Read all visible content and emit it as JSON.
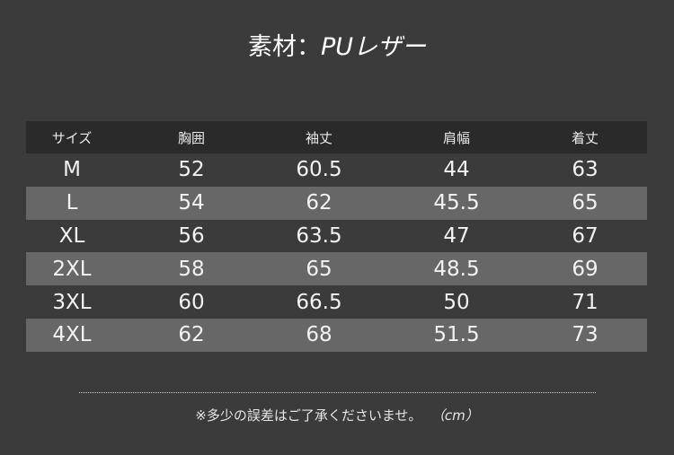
{
  "title": {
    "prefix": "素材：",
    "material": "PUレザー"
  },
  "table": {
    "headers": [
      "サイズ",
      "胸囲",
      "袖丈",
      "肩幅",
      "着丈"
    ],
    "rows": [
      [
        "M",
        "52",
        "60.5",
        "44",
        "63"
      ],
      [
        "L",
        "54",
        "62",
        "45.5",
        "65"
      ],
      [
        "XL",
        "56",
        "63.5",
        "47",
        "67"
      ],
      [
        "2XL",
        "58",
        "65",
        "48.5",
        "69"
      ],
      [
        "3XL",
        "60",
        "66.5",
        "50",
        "71"
      ],
      [
        "4XL",
        "62",
        "68",
        "51.5",
        "73"
      ]
    ]
  },
  "note": {
    "text": "※多少の誤差はご了承くださいませ。",
    "unit": "（cm）"
  },
  "colors": {
    "background": "#3b3b3b",
    "header": "#2a2a2a",
    "shaded_row": "#676767"
  }
}
